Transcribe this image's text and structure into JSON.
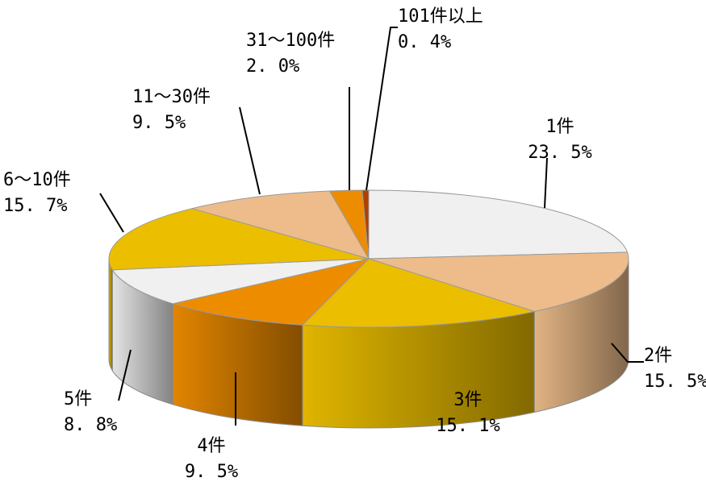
{
  "chart_data": {
    "type": "pie",
    "style": "3d",
    "slices": [
      {
        "label": "1件",
        "value": 23.5,
        "display": "23. 5%",
        "color": "#f0f0f0"
      },
      {
        "label": "2件",
        "value": 15.5,
        "display": "15. 5%",
        "color": "#edbc8a"
      },
      {
        "label": "3件",
        "value": 15.1,
        "display": "15. 1%",
        "color": "#ecbe00"
      },
      {
        "label": "4件",
        "value": 9.5,
        "display": "9. 5%",
        "color": "#ee8c00"
      },
      {
        "label": "5件",
        "value": 8.8,
        "display": "8. 8%",
        "color": "#f0f0f0"
      },
      {
        "label": "6～10件",
        "value": 15.7,
        "display": "15. 7%",
        "color": "#ecbe00"
      },
      {
        "label": "11～30件",
        "value": 9.5,
        "display": "9. 5%",
        "color": "#edbc8a"
      },
      {
        "label": "31～100件",
        "value": 2.0,
        "display": "2. 0%",
        "color": "#ee8c00"
      },
      {
        "label": "101件以上",
        "value": 0.4,
        "display": "0. 4%",
        "color": "#b04000"
      }
    ]
  }
}
